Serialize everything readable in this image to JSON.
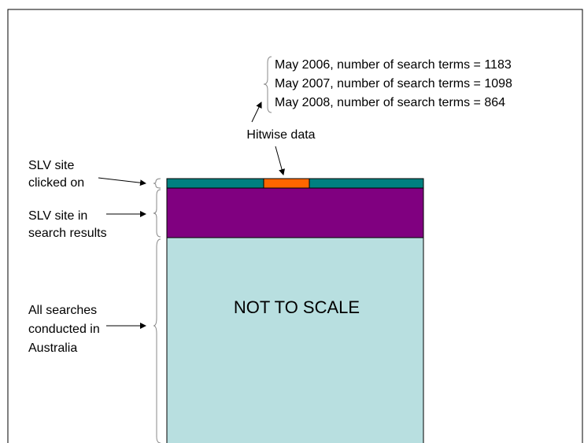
{
  "search_terms": {
    "lines": [
      "May 2006, number of search terms = 1183",
      "May 2007, number of search terms = 1098",
      "May 2008, number of search terms = 864"
    ]
  },
  "source": "Hitwise data",
  "labels": [
    {
      "lines": [
        "SLV site",
        "clicked on"
      ]
    },
    {
      "lines": [
        "SLV site in",
        "search results"
      ]
    },
    {
      "lines": [
        "All searches",
        "conducted in",
        "Australia"
      ]
    }
  ],
  "box_label": "NOT TO SCALE"
}
